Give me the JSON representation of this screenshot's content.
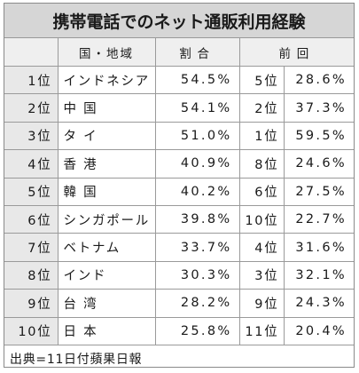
{
  "table": {
    "title": "携帯電話でのネット通販利用経験",
    "headers": {
      "country": "国・地域",
      "ratio": "割合",
      "previous": "前回"
    },
    "rows": [
      {
        "rank": "1位",
        "country": "インドネシア",
        "ratio": "54.5%",
        "prev_rank": "5位",
        "prev_ratio": "28.6%"
      },
      {
        "rank": "2位",
        "country": "中 国",
        "ratio": "54.1%",
        "prev_rank": "2位",
        "prev_ratio": "37.3%"
      },
      {
        "rank": "3位",
        "country": "タ イ",
        "ratio": "51.0%",
        "prev_rank": "1位",
        "prev_ratio": "59.5%"
      },
      {
        "rank": "4位",
        "country": "香 港",
        "ratio": "40.9%",
        "prev_rank": "8位",
        "prev_ratio": "24.6%"
      },
      {
        "rank": "5位",
        "country": "韓 国",
        "ratio": "40.2%",
        "prev_rank": "6位",
        "prev_ratio": "27.5%"
      },
      {
        "rank": "6位",
        "country": "シンガポール",
        "ratio": "39.8%",
        "prev_rank": "10位",
        "prev_ratio": "22.7%"
      },
      {
        "rank": "7位",
        "country": "ベトナム",
        "ratio": "33.7%",
        "prev_rank": "4位",
        "prev_ratio": "31.6%"
      },
      {
        "rank": "8位",
        "country": "インド",
        "ratio": "30.3%",
        "prev_rank": "3位",
        "prev_ratio": "32.1%"
      },
      {
        "rank": "9位",
        "country": "台 湾",
        "ratio": "28.2%",
        "prev_rank": "9位",
        "prev_ratio": "24.3%"
      },
      {
        "rank": "10位",
        "country": "日 本",
        "ratio": "25.8%",
        "prev_rank": "11位",
        "prev_ratio": "20.4%"
      }
    ],
    "source": "出典=11日付蘋果日報"
  },
  "colors": {
    "title_background": "#d6d6d6",
    "header_background": "#efefef",
    "rank_background": "#e8e8e8",
    "border": "#9a9a9a"
  }
}
